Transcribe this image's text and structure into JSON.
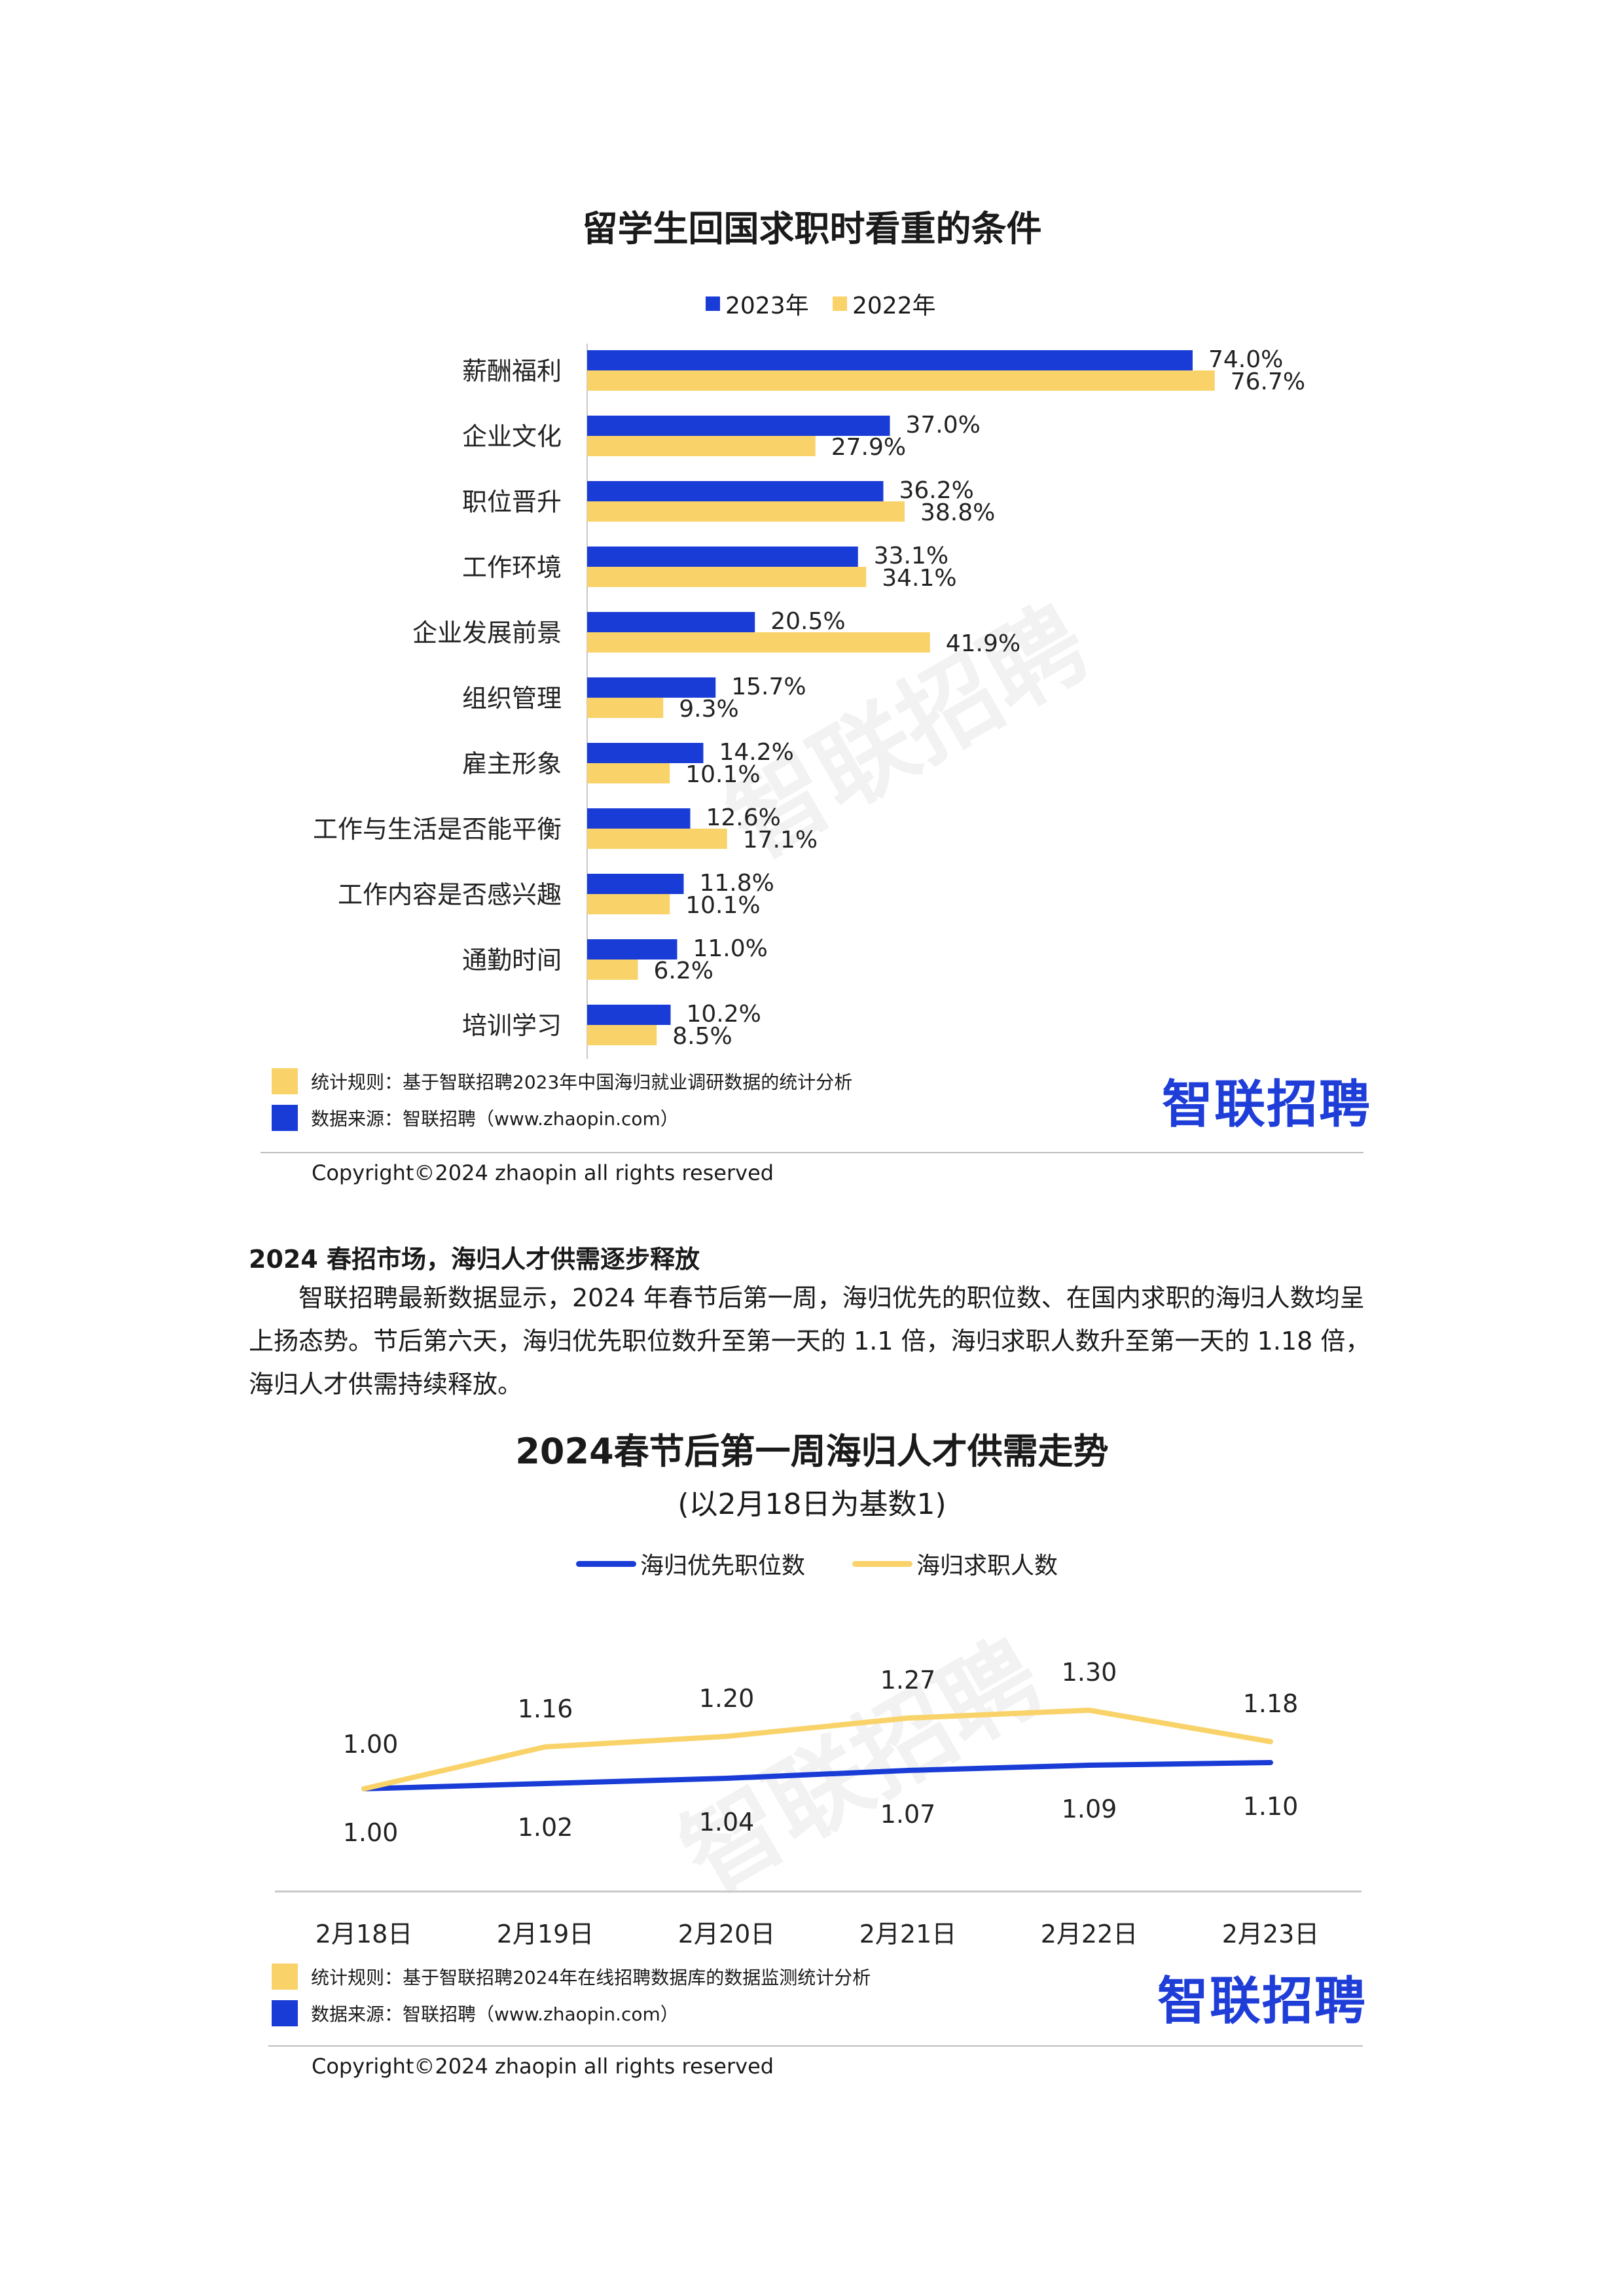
{
  "colors": {
    "series_2023": "#1a3cd6",
    "series_2022": "#f9d36a",
    "brand": "#1f3ed8"
  },
  "chart1": {
    "title": "留学生回国求职时看重的条件",
    "legend": [
      "2023年",
      "2022年"
    ],
    "notes": [
      "统计规则：基于智联招聘2023年中国海归就业调研数据的统计分析",
      "数据来源：智联招聘（www.zhaopin.com）"
    ],
    "brand": "智联招聘",
    "copyright": "Copyright©2024 zhaopin all rights reserved",
    "watermark": "智联招聘"
  },
  "section": {
    "heading": "2024 春招市场，海归人才供需逐步释放",
    "paragraph": "智联招聘最新数据显示，2024 年春节后第一周，海归优先的职位数、在国内求职的海归人数均呈上扬态势。节后第六天，海归优先职位数升至第一天的 1.1 倍，海归求职人数升至第一天的 1.18 倍，海归人才供需持续释放。"
  },
  "chart2": {
    "title": "2024春节后第一周海归人才供需走势",
    "subtitle": "(以2月18日为基数1)",
    "legend": [
      "海归优先职位数",
      "海归求职人数"
    ],
    "notes": [
      "统计规则：基于智联招聘2024年在线招聘数据库的数据监测统计分析",
      "数据来源：智联招聘（www.zhaopin.com）"
    ],
    "brand": "智联招聘",
    "copyright": "Copyright©2024 zhaopin all rights reserved",
    "watermark": "智联招聘"
  },
  "chart_data": [
    {
      "type": "bar",
      "title": "留学生回国求职时看重的条件",
      "categories": [
        "薪酬福利",
        "企业文化",
        "职位晋升",
        "工作环境",
        "企业发展前景",
        "组织管理",
        "雇主形象",
        "工作与生活是否能平衡",
        "工作内容是否感兴趣",
        "通勤时间",
        "培训学习"
      ],
      "series": [
        {
          "name": "2023年",
          "values": [
            74.0,
            37.0,
            36.2,
            33.1,
            20.5,
            15.7,
            14.2,
            12.6,
            11.8,
            11.0,
            10.2
          ],
          "labels": [
            "74.0%",
            "37.0%",
            "36.2%",
            "33.1%",
            "20.5%",
            "15.7%",
            "14.2%",
            "12.6%",
            "11.8%",
            "11.0%",
            "10.2%"
          ]
        },
        {
          "name": "2022年",
          "values": [
            76.7,
            27.9,
            38.8,
            34.1,
            41.9,
            9.3,
            10.1,
            17.1,
            10.1,
            6.2,
            8.5
          ],
          "labels": [
            "76.7%",
            "27.9%",
            "38.8%",
            "34.1%",
            "41.9%",
            "9.3%",
            "10.1%",
            "17.1%",
            "10.1%",
            "6.2%",
            "8.5%"
          ]
        }
      ],
      "unit": "%",
      "orientation": "horizontal"
    },
    {
      "type": "line",
      "title": "2024春节后第一周海归人才供需走势",
      "subtitle": "(以2月18日为基数1)",
      "x": [
        "2月18日",
        "2月19日",
        "2月20日",
        "2月21日",
        "2月22日",
        "2月23日"
      ],
      "series": [
        {
          "name": "海归优先职位数",
          "values": [
            1.0,
            1.02,
            1.04,
            1.07,
            1.09,
            1.1
          ],
          "labels": [
            "1.00",
            "1.02",
            "1.04",
            "1.07",
            "1.09",
            "1.10"
          ]
        },
        {
          "name": "海归求职人数",
          "values": [
            1.0,
            1.16,
            1.2,
            1.27,
            1.3,
            1.18
          ],
          "labels": [
            "1.00",
            "1.16",
            "1.20",
            "1.27",
            "1.30",
            "1.18"
          ]
        }
      ]
    }
  ]
}
